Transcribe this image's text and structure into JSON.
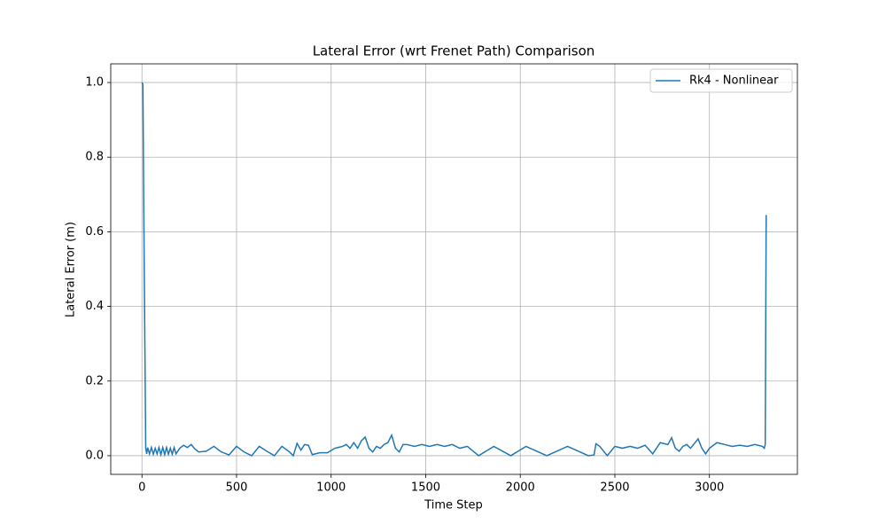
{
  "chart_data": {
    "type": "line",
    "title": "Lateral Error (wrt Frenet Path) Comparison",
    "x_label": "Time Step",
    "y_label": "Lateral Error (m)",
    "x": [
      0,
      5,
      12,
      20,
      25,
      30,
      40,
      50,
      60,
      70,
      80,
      90,
      100,
      110,
      120,
      130,
      140,
      150,
      160,
      170,
      180,
      200,
      220,
      240,
      260,
      280,
      300,
      340,
      380,
      420,
      460,
      500,
      540,
      580,
      620,
      660,
      700,
      740,
      780,
      800,
      820,
      840,
      860,
      880,
      900,
      940,
      980,
      1020,
      1060,
      1080,
      1100,
      1120,
      1140,
      1160,
      1180,
      1200,
      1220,
      1240,
      1260,
      1280,
      1300,
      1320,
      1340,
      1360,
      1380,
      1400,
      1440,
      1480,
      1520,
      1560,
      1600,
      1640,
      1680,
      1720,
      1780,
      1860,
      1950,
      2030,
      2140,
      2250,
      2360,
      2390,
      2400,
      2420,
      2460,
      2500,
      2540,
      2580,
      2620,
      2660,
      2700,
      2740,
      2780,
      2800,
      2820,
      2840,
      2860,
      2880,
      2900,
      2940,
      2960,
      2980,
      3000,
      3040,
      3080,
      3120,
      3160,
      3200,
      3240,
      3280,
      3290,
      3295,
      3300
    ],
    "series": [
      {
        "name": "Rk4 - Nonlinear",
        "color": "#1f77b4",
        "values": [
          1.0,
          0.995,
          0.5,
          0.02,
          0.005,
          0.022,
          0.005,
          0.022,
          0.004,
          0.02,
          0.005,
          0.022,
          0.003,
          0.022,
          0.003,
          0.022,
          0.004,
          0.02,
          0.004,
          0.022,
          0.005,
          0.02,
          0.028,
          0.022,
          0.03,
          0.018,
          0.01,
          0.012,
          0.025,
          0.01,
          0.002,
          0.025,
          0.01,
          0.0,
          0.025,
          0.012,
          0.0,
          0.025,
          0.01,
          0.0,
          0.033,
          0.015,
          0.03,
          0.028,
          0.003,
          0.008,
          0.008,
          0.02,
          0.025,
          0.03,
          0.02,
          0.035,
          0.02,
          0.04,
          0.05,
          0.02,
          0.01,
          0.025,
          0.02,
          0.03,
          0.035,
          0.055,
          0.02,
          0.01,
          0.03,
          0.03,
          0.025,
          0.03,
          0.025,
          0.03,
          0.025,
          0.03,
          0.02,
          0.025,
          0.0,
          0.025,
          0.0,
          0.025,
          0.0,
          0.025,
          0.0,
          0.002,
          0.032,
          0.025,
          0.0,
          0.025,
          0.02,
          0.025,
          0.02,
          0.028,
          0.005,
          0.035,
          0.03,
          0.048,
          0.02,
          0.012,
          0.025,
          0.03,
          0.02,
          0.045,
          0.02,
          0.005,
          0.02,
          0.035,
          0.03,
          0.025,
          0.028,
          0.025,
          0.03,
          0.025,
          0.02,
          0.03,
          0.645
        ]
      }
    ],
    "xlim": [
      -165,
      3465
    ],
    "ylim": [
      -0.05,
      1.05
    ],
    "xticks": [
      0,
      500,
      1000,
      1500,
      2000,
      2500,
      3000
    ],
    "yticks": [
      {
        "value": 0,
        "label": "0.0"
      },
      0.2,
      0.4,
      0.6,
      0.8,
      {
        "value": 1,
        "label": "1.0"
      }
    ],
    "grid": true,
    "legend": "upper right"
  }
}
